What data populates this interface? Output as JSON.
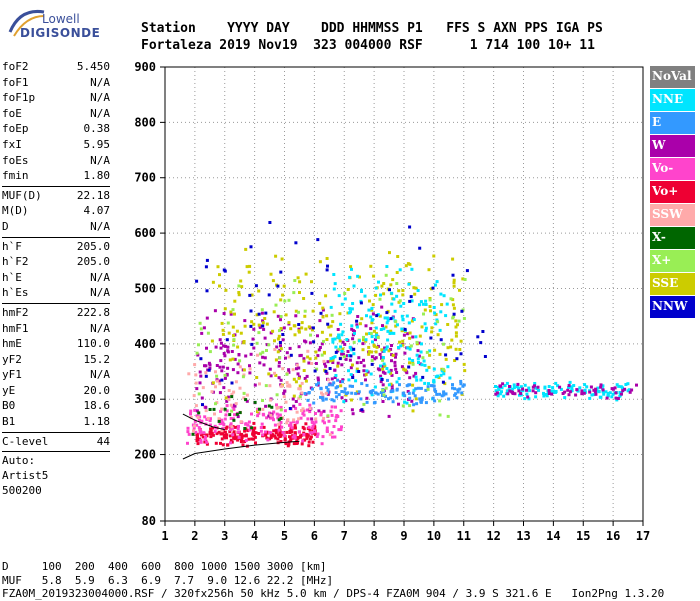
{
  "logo": {
    "line1": "Lowell",
    "line2": "DIGISONDE"
  },
  "header": {
    "labels": "Station    YYYY DAY    DDD HHMMSS P1   FFS S AXN PPS IGA PS",
    "values": "Fortaleza 2019 Nov19  323 004000 RSF      1 714 100 10+ 11"
  },
  "params": {
    "group1": [
      {
        "k": "foF2",
        "v": "5.450"
      },
      {
        "k": "foF1",
        "v": "N/A"
      },
      {
        "k": "foF1p",
        "v": "N/A"
      },
      {
        "k": "foE",
        "v": "N/A"
      },
      {
        "k": "foEp",
        "v": "0.38"
      },
      {
        "k": "fxI",
        "v": "5.95"
      },
      {
        "k": "foEs",
        "v": "N/A"
      },
      {
        "k": "fmin",
        "v": "1.80"
      }
    ],
    "group2": [
      {
        "k": "MUF(D)",
        "v": "22.18"
      },
      {
        "k": "M(D)",
        "v": "4.07"
      },
      {
        "k": "D",
        "v": "N/A"
      }
    ],
    "group3": [
      {
        "k": "h`F",
        "v": "205.0"
      },
      {
        "k": "h`F2",
        "v": "205.0"
      },
      {
        "k": "h`E",
        "v": "N/A"
      },
      {
        "k": "h`Es",
        "v": "N/A"
      }
    ],
    "group4": [
      {
        "k": "hmF2",
        "v": "222.8"
      },
      {
        "k": "hmF1",
        "v": "N/A"
      },
      {
        "k": "hmE",
        "v": "110.0"
      },
      {
        "k": "yF2",
        "v": "15.2"
      },
      {
        "k": "yF1",
        "v": "N/A"
      },
      {
        "k": "yE",
        "v": "20.0"
      },
      {
        "k": "B0",
        "v": "18.6"
      },
      {
        "k": "B1",
        "v": "1.18"
      }
    ],
    "group5": [
      {
        "k": "C-level",
        "v": "44"
      }
    ],
    "auto": [
      "Auto:",
      "Artist5",
      "500200"
    ]
  },
  "legend": [
    {
      "label": "NoVal",
      "color": "#808080"
    },
    {
      "label": "NNE",
      "color": "#00e5ff"
    },
    {
      "label": "E",
      "color": "#3399ff"
    },
    {
      "label": "W",
      "color": "#aa00aa"
    },
    {
      "label": "Vo-",
      "color": "#ff44cc"
    },
    {
      "label": "Vo+",
      "color": "#ee0033"
    },
    {
      "label": "SSW",
      "color": "#ffaaaa"
    },
    {
      "label": "X-",
      "color": "#006600"
    },
    {
      "label": "X+",
      "color": "#99ee55"
    },
    {
      "label": "SSE",
      "color": "#cccc00"
    },
    {
      "label": "NNW",
      "color": "#0000cc"
    }
  ],
  "footer": {
    "line1": "D     100  200  400  600  800 1000 1500 3000 [km]",
    "line2": "MUF   5.8  5.9  6.3  6.9  7.7  9.0 12.6 22.2 [MHz]",
    "line3": "FZA0M_2019323004000.RSF / 320fx256h 50 kHz 5.0 km / DPS-4 FZA0M 904 / 3.9 S 321.6 E   Ion2Png 1.3.20"
  },
  "chart_data": {
    "type": "scatter",
    "xlim": [
      1,
      17
    ],
    "ylim": [
      80,
      900
    ],
    "x_ticks": [
      1,
      2,
      3,
      4,
      5,
      6,
      7,
      8,
      9,
      10,
      11,
      12,
      13,
      14,
      15,
      16,
      17
    ],
    "y_ticks": [
      80,
      200,
      300,
      400,
      500,
      600,
      700,
      800,
      900
    ],
    "grid": true,
    "legend_position": "right",
    "clusters": [
      {
        "series": "Vo+",
        "x": [
          2.0,
          6.0
        ],
        "y": [
          215,
          260
        ],
        "n": 220
      },
      {
        "series": "Vo-",
        "x": [
          1.7,
          7.0
        ],
        "y": [
          220,
          300
        ],
        "n": 180
      },
      {
        "series": "W",
        "x": [
          2.0,
          9.5
        ],
        "y": [
          260,
          480
        ],
        "n": 280
      },
      {
        "series": "SSE",
        "x": [
          2.5,
          11.0
        ],
        "y": [
          270,
          580
        ],
        "n": 260
      },
      {
        "series": "NNE",
        "x": [
          6.5,
          10.5
        ],
        "y": [
          280,
          560
        ],
        "n": 180
      },
      {
        "series": "E",
        "x": [
          5.5,
          11.0
        ],
        "y": [
          290,
          340
        ],
        "n": 120
      },
      {
        "series": "SSW",
        "x": [
          1.7,
          6.5
        ],
        "y": [
          230,
          400
        ],
        "n": 90
      },
      {
        "series": "X+",
        "x": [
          2.0,
          11.0
        ],
        "y": [
          240,
          560
        ],
        "n": 90
      },
      {
        "series": "NNW",
        "x": [
          2.0,
          12.0
        ],
        "y": [
          250,
          650
        ],
        "n": 80
      },
      {
        "series": "X-",
        "x": [
          1.8,
          5.0
        ],
        "y": [
          230,
          320
        ],
        "n": 20
      },
      {
        "series": "NNE",
        "x": [
          12.0,
          16.5
        ],
        "y": [
          300,
          335
        ],
        "n": 110
      },
      {
        "series": "W",
        "x": [
          12.0,
          16.8
        ],
        "y": [
          300,
          335
        ],
        "n": 60
      }
    ],
    "trace": {
      "x": [
        1.6,
        2.0,
        3.0,
        4.0,
        5.0,
        5.5
      ],
      "y": [
        192,
        202,
        210,
        217,
        222,
        224
      ]
    },
    "trace2": {
      "x": [
        1.6,
        2.0,
        2.6,
        3.0
      ],
      "y": [
        273,
        262,
        250,
        245
      ]
    }
  }
}
